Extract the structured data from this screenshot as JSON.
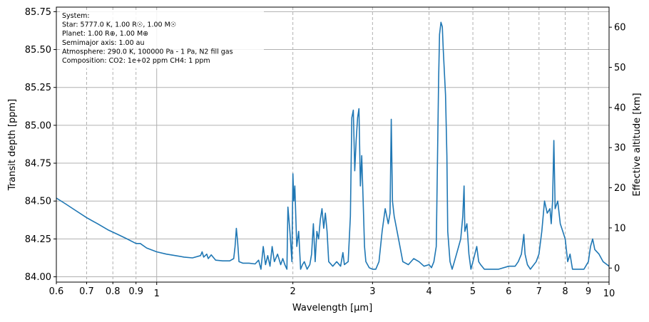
{
  "chart_data": {
    "type": "line",
    "xlabel": "Wavelength [µm]",
    "ylabel": "Transit depth [ppm]",
    "ylabel_right": "Effective altitude [km]",
    "xscale": "log",
    "xlim": [
      0.6,
      10
    ],
    "ylim": [
      83.965,
      85.78
    ],
    "ylim_right": [
      -3.5,
      65
    ],
    "grid": true,
    "x_ticks": [
      {
        "v": 0.6,
        "label": "0.6"
      },
      {
        "v": 0.7,
        "label": "0.7"
      },
      {
        "v": 0.8,
        "label": "0.8"
      },
      {
        "v": 0.9,
        "label": "0.9"
      },
      {
        "v": 1,
        "label": "1"
      },
      {
        "v": 2,
        "label": "2"
      },
      {
        "v": 3,
        "label": "3"
      },
      {
        "v": 4,
        "label": "4"
      },
      {
        "v": 5,
        "label": "5"
      },
      {
        "v": 6,
        "label": "6"
      },
      {
        "v": 7,
        "label": "7"
      },
      {
        "v": 8,
        "label": "8"
      },
      {
        "v": 9,
        "label": "9"
      },
      {
        "v": 10,
        "label": "10"
      }
    ],
    "x_major": [
      1,
      10
    ],
    "y_ticks": [
      {
        "v": 84.0,
        "label": "84.00"
      },
      {
        "v": 84.25,
        "label": "84.25"
      },
      {
        "v": 84.5,
        "label": "84.50"
      },
      {
        "v": 84.75,
        "label": "84.75"
      },
      {
        "v": 85.0,
        "label": "85.00"
      },
      {
        "v": 85.25,
        "label": "85.25"
      },
      {
        "v": 85.5,
        "label": "85.50"
      },
      {
        "v": 85.75,
        "label": "85.75"
      }
    ],
    "y_ticks_right": [
      {
        "v": 0,
        "label": "0"
      },
      {
        "v": 10,
        "label": "10"
      },
      {
        "v": 20,
        "label": "20"
      },
      {
        "v": 30,
        "label": "30"
      },
      {
        "v": 40,
        "label": "40"
      },
      {
        "v": 50,
        "label": "50"
      },
      {
        "v": 60,
        "label": "60"
      }
    ],
    "series": [
      {
        "color": "#1f77b4",
        "points": [
          [
            0.6,
            84.52
          ],
          [
            0.63,
            84.48
          ],
          [
            0.66,
            84.44
          ],
          [
            0.7,
            84.39
          ],
          [
            0.74,
            84.35
          ],
          [
            0.78,
            84.31
          ],
          [
            0.82,
            84.28
          ],
          [
            0.86,
            84.25
          ],
          [
            0.9,
            84.22
          ],
          [
            0.92,
            84.22
          ],
          [
            0.95,
            84.19
          ],
          [
            1.0,
            84.165
          ],
          [
            1.05,
            84.15
          ],
          [
            1.1,
            84.14
          ],
          [
            1.15,
            84.13
          ],
          [
            1.2,
            84.125
          ],
          [
            1.25,
            84.14
          ],
          [
            1.26,
            84.165
          ],
          [
            1.27,
            84.13
          ],
          [
            1.29,
            84.15
          ],
          [
            1.3,
            84.12
          ],
          [
            1.32,
            84.145
          ],
          [
            1.35,
            84.11
          ],
          [
            1.4,
            84.105
          ],
          [
            1.45,
            84.105
          ],
          [
            1.48,
            84.12
          ],
          [
            1.49,
            84.2
          ],
          [
            1.5,
            84.32
          ],
          [
            1.51,
            84.23
          ],
          [
            1.52,
            84.1
          ],
          [
            1.55,
            84.09
          ],
          [
            1.6,
            84.09
          ],
          [
            1.65,
            84.085
          ],
          [
            1.68,
            84.11
          ],
          [
            1.7,
            84.05
          ],
          [
            1.72,
            84.2
          ],
          [
            1.74,
            84.08
          ],
          [
            1.76,
            84.14
          ],
          [
            1.78,
            84.07
          ],
          [
            1.8,
            84.2
          ],
          [
            1.82,
            84.1
          ],
          [
            1.85,
            84.15
          ],
          [
            1.88,
            84.08
          ],
          [
            1.9,
            84.12
          ],
          [
            1.92,
            84.08
          ],
          [
            1.94,
            84.05
          ],
          [
            1.95,
            84.46
          ],
          [
            1.97,
            84.3
          ],
          [
            1.99,
            84.1
          ],
          [
            2.0,
            84.68
          ],
          [
            2.01,
            84.5
          ],
          [
            2.02,
            84.6
          ],
          [
            2.04,
            84.2
          ],
          [
            2.06,
            84.3
          ],
          [
            2.08,
            84.05
          ],
          [
            2.1,
            84.08
          ],
          [
            2.12,
            84.1
          ],
          [
            2.15,
            84.05
          ],
          [
            2.18,
            84.08
          ],
          [
            2.2,
            84.15
          ],
          [
            2.22,
            84.35
          ],
          [
            2.24,
            84.1
          ],
          [
            2.26,
            84.3
          ],
          [
            2.28,
            84.25
          ],
          [
            2.3,
            84.38
          ],
          [
            2.32,
            84.45
          ],
          [
            2.34,
            84.32
          ],
          [
            2.36,
            84.42
          ],
          [
            2.38,
            84.3
          ],
          [
            2.4,
            84.1
          ],
          [
            2.45,
            84.07
          ],
          [
            2.5,
            84.1
          ],
          [
            2.55,
            84.07
          ],
          [
            2.58,
            84.16
          ],
          [
            2.6,
            84.08
          ],
          [
            2.65,
            84.1
          ],
          [
            2.68,
            84.4
          ],
          [
            2.7,
            85.05
          ],
          [
            2.72,
            85.1
          ],
          [
            2.74,
            84.7
          ],
          [
            2.76,
            84.9
          ],
          [
            2.78,
            85.05
          ],
          [
            2.8,
            85.11
          ],
          [
            2.82,
            84.6
          ],
          [
            2.84,
            84.8
          ],
          [
            2.86,
            84.5
          ],
          [
            2.88,
            84.2
          ],
          [
            2.9,
            84.1
          ],
          [
            2.95,
            84.06
          ],
          [
            3.0,
            84.05
          ],
          [
            3.05,
            84.05
          ],
          [
            3.1,
            84.1
          ],
          [
            3.15,
            84.3
          ],
          [
            3.2,
            84.45
          ],
          [
            3.25,
            84.35
          ],
          [
            3.28,
            84.42
          ],
          [
            3.3,
            85.04
          ],
          [
            3.32,
            84.5
          ],
          [
            3.35,
            84.4
          ],
          [
            3.4,
            84.3
          ],
          [
            3.45,
            84.2
          ],
          [
            3.5,
            84.1
          ],
          [
            3.6,
            84.08
          ],
          [
            3.7,
            84.12
          ],
          [
            3.8,
            84.1
          ],
          [
            3.9,
            84.07
          ],
          [
            4.0,
            84.08
          ],
          [
            4.05,
            84.06
          ],
          [
            4.1,
            84.1
          ],
          [
            4.15,
            84.2
          ],
          [
            4.2,
            85.3
          ],
          [
            4.22,
            85.6
          ],
          [
            4.25,
            85.68
          ],
          [
            4.28,
            85.65
          ],
          [
            4.3,
            85.5
          ],
          [
            4.35,
            85.2
          ],
          [
            4.38,
            84.8
          ],
          [
            4.4,
            84.3
          ],
          [
            4.45,
            84.1
          ],
          [
            4.5,
            84.05
          ],
          [
            4.55,
            84.1
          ],
          [
            4.6,
            84.15
          ],
          [
            4.65,
            84.2
          ],
          [
            4.7,
            84.25
          ],
          [
            4.75,
            84.4
          ],
          [
            4.78,
            84.6
          ],
          [
            4.8,
            84.3
          ],
          [
            4.85,
            84.35
          ],
          [
            4.9,
            84.15
          ],
          [
            4.95,
            84.05
          ],
          [
            5.0,
            84.1
          ],
          [
            5.1,
            84.2
          ],
          [
            5.15,
            84.1
          ],
          [
            5.2,
            84.08
          ],
          [
            5.3,
            84.05
          ],
          [
            5.5,
            84.05
          ],
          [
            5.7,
            84.05
          ],
          [
            6.0,
            84.07
          ],
          [
            6.2,
            84.07
          ],
          [
            6.3,
            84.1
          ],
          [
            6.4,
            84.15
          ],
          [
            6.48,
            84.28
          ],
          [
            6.52,
            84.15
          ],
          [
            6.6,
            84.08
          ],
          [
            6.7,
            84.05
          ],
          [
            6.9,
            84.1
          ],
          [
            7.0,
            84.15
          ],
          [
            7.1,
            84.3
          ],
          [
            7.2,
            84.5
          ],
          [
            7.3,
            84.42
          ],
          [
            7.4,
            84.45
          ],
          [
            7.45,
            84.35
          ],
          [
            7.5,
            84.5
          ],
          [
            7.55,
            84.9
          ],
          [
            7.6,
            84.45
          ],
          [
            7.7,
            84.5
          ],
          [
            7.8,
            84.35
          ],
          [
            7.9,
            84.3
          ],
          [
            8.0,
            84.25
          ],
          [
            8.1,
            84.1
          ],
          [
            8.2,
            84.15
          ],
          [
            8.3,
            84.05
          ],
          [
            8.5,
            84.05
          ],
          [
            8.8,
            84.05
          ],
          [
            9.0,
            84.1
          ],
          [
            9.1,
            84.2
          ],
          [
            9.2,
            84.25
          ],
          [
            9.3,
            84.18
          ],
          [
            9.5,
            84.15
          ],
          [
            9.7,
            84.1
          ],
          [
            9.9,
            84.08
          ],
          [
            10.0,
            84.07
          ]
        ]
      }
    ],
    "annotation": [
      "System:",
      " Star: 5777.0 K, 1.00 R☉, 1.00 M☉",
      " Planet: 1.00 R⊕, 1.00 M⊕",
      " Semimajor axis: 1.00 au",
      " Atmosphere: 290.0 K, 100000 Pa - 1 Pa, N2 fill gas",
      " Composition: CO2: 1e+02 ppm CH4: 1 ppm"
    ]
  }
}
